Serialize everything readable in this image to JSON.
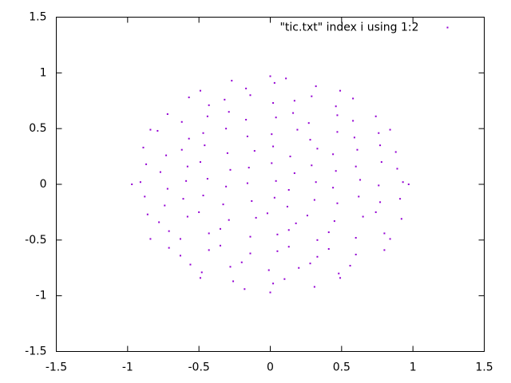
{
  "chart_data": {
    "type": "scatter",
    "x": [
      -0.26,
      -0.18,
      0.02,
      0.1,
      0.31,
      -0.56,
      -0.48,
      -0.28,
      -0.2,
      -0.01,
      0.2,
      0.28,
      0.48,
      0.56,
      -0.71,
      -0.63,
      -0.43,
      -0.35,
      -0.14,
      0.05,
      0.13,
      0.33,
      0.41,
      0.6,
      0.8,
      -0.71,
      -0.63,
      -0.43,
      -0.35,
      -0.14,
      0.05,
      0.13,
      0.33,
      0.41,
      0.6,
      0.8,
      -0.86,
      -0.78,
      -0.58,
      -0.5,
      -0.29,
      -0.1,
      -0.02,
      0.18,
      0.26,
      0.45,
      0.65,
      0.74,
      0.92,
      -0.88,
      -0.74,
      -0.61,
      -0.47,
      -0.33,
      -0.13,
      0.03,
      0.12,
      0.31,
      0.47,
      0.62,
      0.77,
      0.91,
      -0.91,
      -0.72,
      -0.59,
      -0.44,
      -0.31,
      -0.16,
      0.04,
      0.13,
      0.32,
      0.44,
      0.63,
      0.76,
      0.93,
      -0.87,
      -0.77,
      -0.58,
      -0.49,
      -0.28,
      -0.15,
      0.01,
      0.17,
      0.29,
      0.46,
      0.6,
      0.78,
      0.89,
      -0.89,
      -0.73,
      -0.62,
      -0.46,
      -0.3,
      -0.11,
      0.02,
      0.14,
      0.33,
      0.44,
      0.61,
      0.77,
      0.88,
      -0.79,
      -0.57,
      -0.47,
      -0.31,
      -0.16,
      0.01,
      0.19,
      0.28,
      0.47,
      0.59,
      0.76,
      -0.72,
      -0.62,
      -0.44,
      -0.29,
      -0.17,
      0.04,
      0.16,
      0.27,
      0.47,
      0.58,
      0.74,
      -0.57,
      -0.43,
      -0.32,
      -0.14,
      0.02,
      0.17,
      0.29,
      0.46,
      0.58,
      -0.27,
      -0.17,
      0.03,
      0.11,
      0.32,
      0.97,
      0.84,
      0.49,
      0,
      -0.49,
      -0.84,
      -0.97,
      -0.84,
      -0.49,
      0,
      0.49,
      0.84
    ],
    "series": [
      {
        "name": "\"tic.txt\" index i using 1:2",
        "color": "#9400d3",
        "values": [
          -0.87,
          -0.94,
          -0.89,
          -0.85,
          -0.92,
          -0.72,
          -0.79,
          -0.74,
          -0.7,
          -0.77,
          -0.75,
          -0.71,
          -0.8,
          -0.73,
          -0.57,
          -0.64,
          -0.59,
          -0.55,
          -0.62,
          -0.6,
          -0.56,
          -0.65,
          -0.58,
          -0.63,
          -0.59,
          -0.42,
          -0.49,
          -0.44,
          -0.4,
          -0.47,
          -0.45,
          -0.41,
          -0.5,
          -0.43,
          -0.48,
          -0.44,
          -0.27,
          -0.34,
          -0.29,
          -0.25,
          -0.32,
          -0.3,
          -0.26,
          -0.35,
          -0.28,
          -0.33,
          -0.29,
          -0.25,
          -0.31,
          -0.11,
          -0.19,
          -0.13,
          -0.1,
          -0.18,
          -0.15,
          -0.12,
          -0.2,
          -0.14,
          -0.17,
          -0.11,
          -0.16,
          -0.13,
          0.02,
          -0.04,
          0.03,
          0.05,
          -0.02,
          0.01,
          0.03,
          -0.05,
          0.02,
          -0.03,
          0.04,
          -0.01,
          0.02,
          0.18,
          0.11,
          0.16,
          0.2,
          0.13,
          0.15,
          0.19,
          0.1,
          0.17,
          0.12,
          0.16,
          0.2,
          0.14,
          0.33,
          0.26,
          0.31,
          0.35,
          0.28,
          0.3,
          0.34,
          0.25,
          0.32,
          0.27,
          0.31,
          0.35,
          0.29,
          0.48,
          0.41,
          0.46,
          0.5,
          0.43,
          0.45,
          0.49,
          0.4,
          0.47,
          0.42,
          0.46,
          0.63,
          0.56,
          0.61,
          0.65,
          0.58,
          0.6,
          0.64,
          0.55,
          0.62,
          0.57,
          0.61,
          0.78,
          0.71,
          0.76,
          0.8,
          0.73,
          0.75,
          0.79,
          0.7,
          0.77,
          0.93,
          0.86,
          0.91,
          0.95,
          0.88,
          0,
          0.49,
          0.84,
          0.97,
          0.84,
          0.49,
          0,
          -0.49,
          -0.84,
          -0.97,
          -0.84,
          -0.49
        ]
      }
    ],
    "xlim": [
      -1.5,
      1.5
    ],
    "xticks": [
      -1.5,
      -1,
      -0.5,
      0,
      0.5,
      1,
      1.5
    ],
    "ylim": [
      -1.5,
      1.5
    ],
    "yticks": [
      -1.5,
      -1,
      -0.5,
      0,
      0.5,
      1,
      1.5
    ],
    "grid": false,
    "legend": "top-right"
  }
}
